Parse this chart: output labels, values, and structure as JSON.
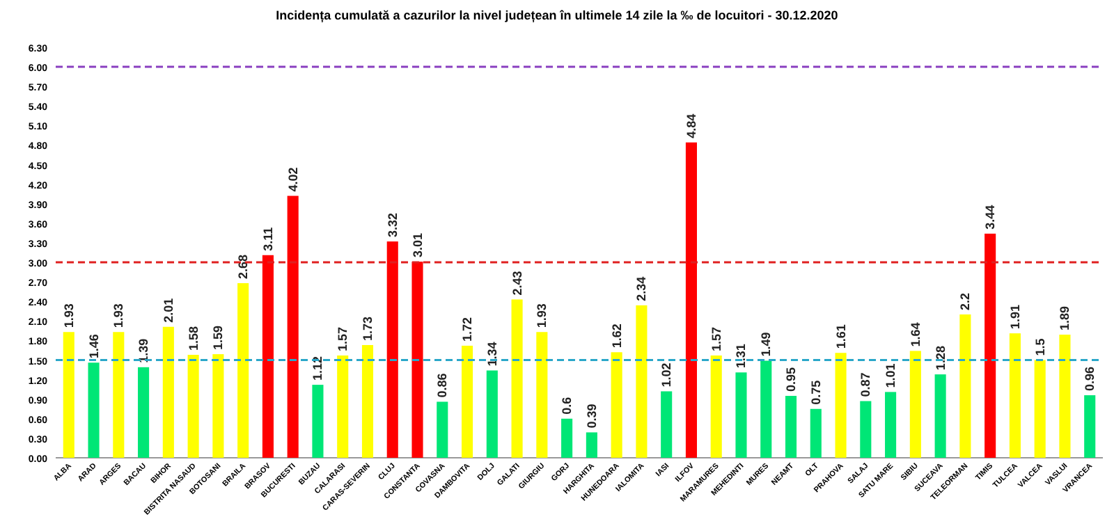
{
  "chart_data": {
    "type": "bar",
    "title": "Incidența cumulată a cazurilor la nivel județean în ultimele 14 zile la ‰ de locuitori - 30.12.2020",
    "categories": [
      "ALBA",
      "ARAD",
      "ARGES",
      "BACAU",
      "BIHOR",
      "BISTRITA NASAUD",
      "BOTOSANI",
      "BRAILA",
      "BRASOV",
      "BUCURESTI",
      "BUZAU",
      "CALARASI",
      "CARAS-SEVERIN",
      "CLUJ",
      "CONSTANTA",
      "COVASNA",
      "DAMBOVITA",
      "DOLJ",
      "GALATI",
      "GIURGIU",
      "GORJ",
      "HARGHITA",
      "HUNEDOARA",
      "IALOMITA",
      "IASI",
      "ILFOV",
      "MARAMURES",
      "MEHEDINTI",
      "MURES",
      "NEAMT",
      "OLT",
      "PRAHOVA",
      "SALAJ",
      "SATU MARE",
      "SIBIU",
      "SUCEAVA",
      "TELEORMAN",
      "TIMIS",
      "TULCEA",
      "VALCEA",
      "VASLUI",
      "VRANCEA"
    ],
    "values": [
      1.93,
      1.46,
      1.93,
      1.39,
      2.01,
      1.58,
      1.59,
      2.68,
      3.11,
      4.02,
      1.12,
      1.57,
      1.73,
      3.32,
      3.01,
      0.86,
      1.72,
      1.34,
      2.43,
      1.93,
      0.6,
      0.39,
      1.62,
      2.34,
      1.02,
      4.84,
      1.57,
      1.31,
      1.49,
      0.95,
      0.75,
      1.61,
      0.87,
      1.01,
      1.64,
      1.28,
      2.2,
      3.44,
      1.91,
      1.5,
      1.89,
      0.96
    ],
    "colors": [
      "#ffff00",
      "#00e676",
      "#ffff00",
      "#00e676",
      "#ffff00",
      "#ffff00",
      "#ffff00",
      "#ffff00",
      "#ff0000",
      "#ff0000",
      "#00e676",
      "#ffff00",
      "#ffff00",
      "#ff0000",
      "#ff0000",
      "#00e676",
      "#ffff00",
      "#00e676",
      "#ffff00",
      "#ffff00",
      "#00e676",
      "#00e676",
      "#ffff00",
      "#ffff00",
      "#00e676",
      "#ff0000",
      "#ffff00",
      "#00e676",
      "#00e676",
      "#00e676",
      "#00e676",
      "#ffff00",
      "#00e676",
      "#00e676",
      "#ffff00",
      "#00e676",
      "#ffff00",
      "#ff0000",
      "#ffff00",
      "#ffff00",
      "#ffff00",
      "#00e676"
    ],
    "data_labels": true,
    "ylim": [
      0,
      6.3
    ],
    "yticks": [
      {
        "value": 0,
        "label": "0.00"
      },
      {
        "value": 0.3,
        "label": "0.30"
      },
      {
        "value": 0.6,
        "label": "0.60"
      },
      {
        "value": 0.9,
        "label": "0.90"
      },
      {
        "value": 1.2,
        "label": "1.20"
      },
      {
        "value": 1.5,
        "label": "1.50"
      },
      {
        "value": 1.8,
        "label": "1.80"
      },
      {
        "value": 2.1,
        "label": "2.10"
      },
      {
        "value": 2.4,
        "label": "2.40"
      },
      {
        "value": 2.7,
        "label": "2.70"
      },
      {
        "value": 3,
        "label": "3.00"
      },
      {
        "value": 3.3,
        "label": "3.30"
      },
      {
        "value": 3.6,
        "label": "3.60"
      },
      {
        "value": 3.9,
        "label": "3.90"
      },
      {
        "value": 4.2,
        "label": "4.20"
      },
      {
        "value": 4.5,
        "label": "4.50"
      },
      {
        "value": 4.8,
        "label": "4.80"
      },
      {
        "value": 5.1,
        "label": "5.10"
      },
      {
        "value": 5.4,
        "label": "5.40"
      },
      {
        "value": 5.7,
        "label": "5.70"
      },
      {
        "value": 6,
        "label": "6.00"
      },
      {
        "value": 6.3,
        "label": "6.30"
      }
    ],
    "ref_lines": [
      {
        "axis": "y",
        "value": 1.5,
        "color": "#2aa7c9",
        "line_style": "dashed"
      },
      {
        "axis": "y",
        "value": 3,
        "color": "#e02020",
        "line_style": "dashed"
      },
      {
        "axis": "y",
        "value": 6,
        "color": "#8a3fc0",
        "line_style": "dashed"
      }
    ]
  }
}
